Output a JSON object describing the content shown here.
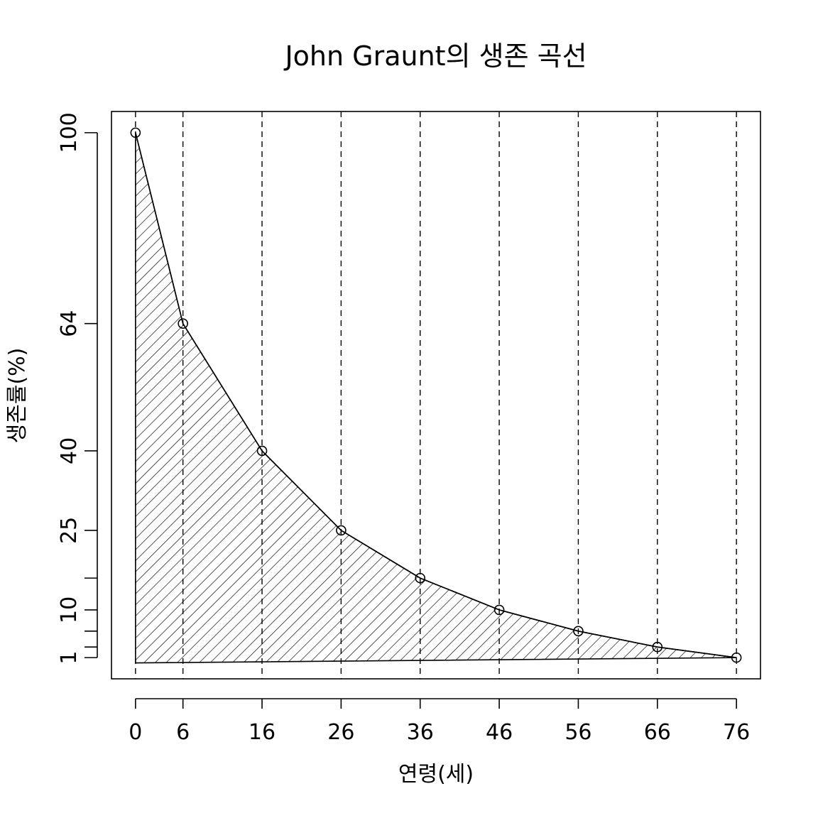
{
  "chart_data": {
    "type": "line",
    "title": "John Graunt의 생존 곡선",
    "xlabel": "연령(세)",
    "ylabel": "생존률(%)",
    "x": [
      0,
      6,
      16,
      26,
      36,
      46,
      56,
      66,
      76
    ],
    "values": [
      100,
      64,
      40,
      25,
      16,
      10,
      6,
      3,
      1
    ],
    "x_ticks": [
      0,
      6,
      16,
      26,
      36,
      46,
      56,
      66,
      76
    ],
    "x_tick_labels": [
      "0",
      "6",
      "16",
      "26",
      "36",
      "46",
      "56",
      "66",
      "76"
    ],
    "y_ticks": [
      100,
      64,
      40,
      25,
      16,
      10,
      6,
      3,
      1
    ],
    "y_tick_labels": [
      "100",
      "64",
      "40",
      "25",
      "",
      "10",
      "",
      "",
      "1"
    ],
    "xlim": [
      -3.04,
      79.04
    ],
    "ylim": [
      -3.0,
      104.0
    ],
    "shade_baseline_y": 0,
    "fill": "hatched",
    "vertical_reference_lines": "dashed at each x tick",
    "markers": "open circle",
    "line_color": "#000000"
  }
}
